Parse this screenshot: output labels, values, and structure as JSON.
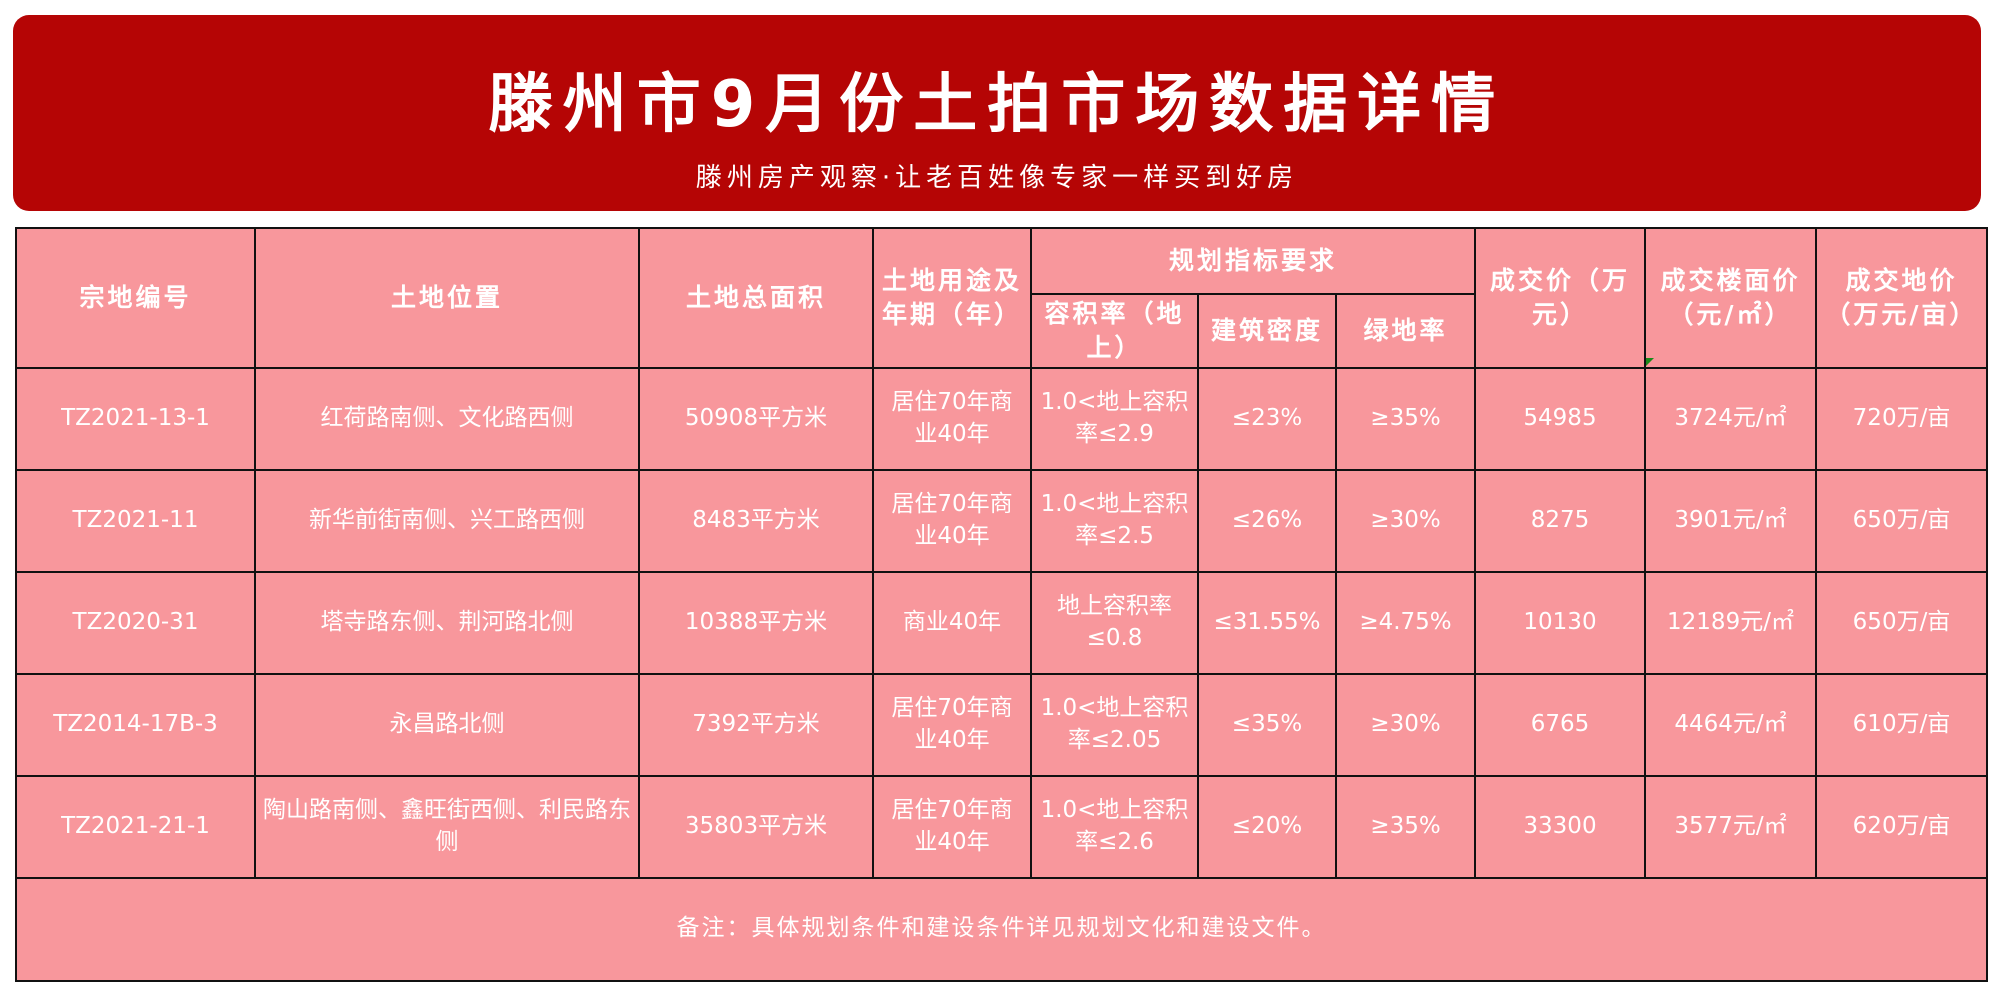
{
  "banner": {
    "title": "滕州市9月份土拍市场数据详情",
    "subtitle": "滕州房产观察·让老百姓像专家一样买到好房"
  },
  "table": {
    "headers": {
      "parcel_id": "宗地编号",
      "location": "土地位置",
      "area": "土地总面积",
      "usage": "土地用途及年期（年）",
      "planning_group": "规划指标要求",
      "far": "容积率（地上）",
      "density": "建筑密度",
      "green": "绿地率",
      "price": "成交价（万元）",
      "floor_price": "成交楼面价（元/㎡）",
      "land_price": "成交地价（万元/亩）"
    },
    "rows": [
      {
        "parcel_id": "TZ2021-13-1",
        "location": "红荷路南侧、文化路西侧",
        "area": "50908平方米",
        "usage": "居住70年商业40年",
        "far": "1.0<地上容积率≤2.9",
        "density": "≤23%",
        "green": "≥35%",
        "price": "54985",
        "floor_price": "3724元/㎡",
        "land_price": "720万/亩"
      },
      {
        "parcel_id": "TZ2021-11",
        "location": "新华前街南侧、兴工路西侧",
        "area": "8483平方米",
        "usage": "居住70年商业40年",
        "far": "1.0<地上容积率≤2.5",
        "density": "≤26%",
        "green": "≥30%",
        "price": "8275",
        "floor_price": "3901元/㎡",
        "land_price": "650万/亩"
      },
      {
        "parcel_id": "TZ2020-31",
        "location": "塔寺路东侧、荆河路北侧",
        "area": "10388平方米",
        "usage": "商业40年",
        "far": "地上容积率≤0.8",
        "density": "≤31.55%",
        "green": "≥4.75%",
        "price": "10130",
        "floor_price": "12189元/㎡",
        "land_price": "650万/亩"
      },
      {
        "parcel_id": "TZ2014-17B-3",
        "location": "永昌路北侧",
        "area": "7392平方米",
        "usage": "居住70年商业40年",
        "far": "1.0<地上容积率≤2.05",
        "density": "≤35%",
        "green": "≥30%",
        "price": "6765",
        "floor_price": "4464元/㎡",
        "land_price": "610万/亩"
      },
      {
        "parcel_id": "TZ2021-21-1",
        "location": "陶山路南侧、鑫旺街西侧、利民路东侧",
        "area": "35803平方米",
        "usage": "居住70年商业40年",
        "far": "1.0<地上容积率≤2.6",
        "density": "≤20%",
        "green": "≥35%",
        "price": "33300",
        "floor_price": "3577元/㎡",
        "land_price": "620万/亩"
      }
    ],
    "footnote": "备注：具体规划条件和建设条件详见规划文化和建设文件。"
  },
  "colors": {
    "banner": "#b50505",
    "table_bg": "#f8979c",
    "text": "#ffffff",
    "border": "#111111"
  }
}
